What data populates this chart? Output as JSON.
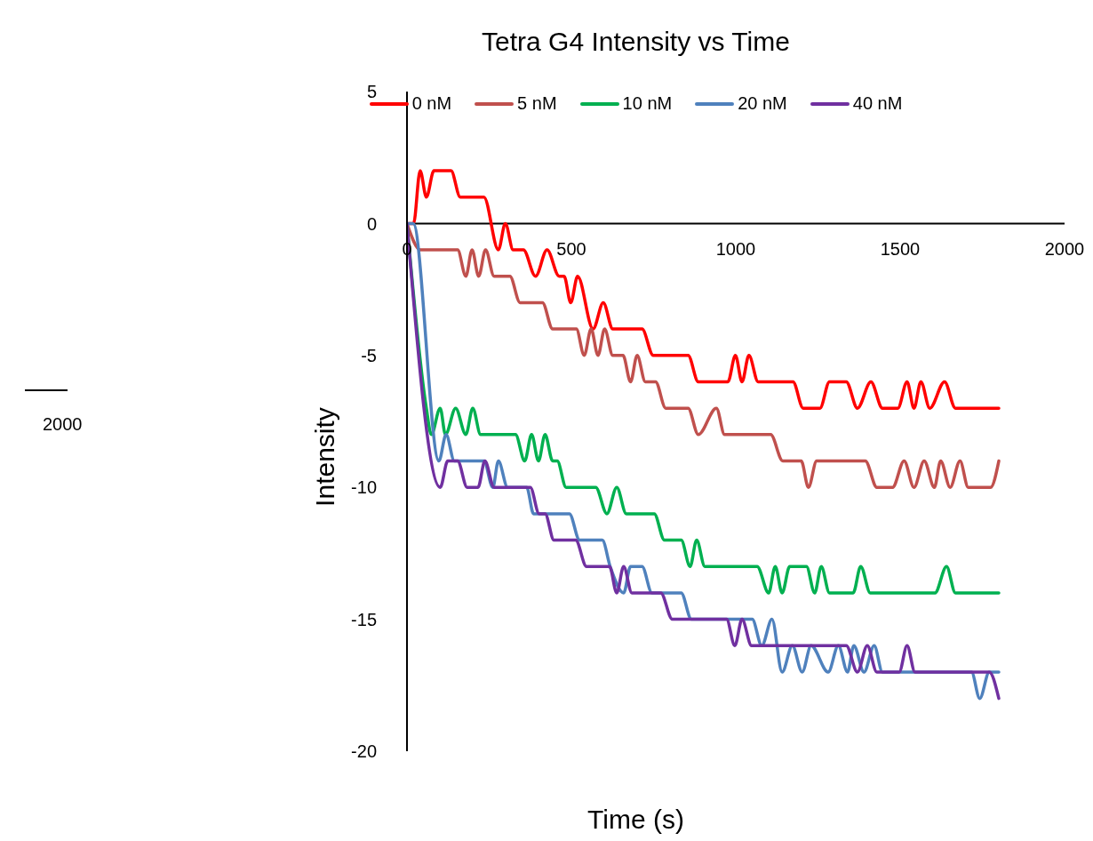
{
  "chart_data": {
    "type": "line",
    "title": "Tetra G4 Intensity vs Time",
    "xlabel": "Time (s)",
    "ylabel": "Intensity",
    "xlim": [
      0,
      2000
    ],
    "xticks": [
      0,
      500,
      1000,
      1500,
      2000
    ],
    "ylim": [
      -20,
      5
    ],
    "yticks": [
      -20,
      -15,
      -10,
      -5,
      0,
      5
    ],
    "grid": false,
    "legend": "top",
    "marker": "none",
    "line_style": "solid",
    "annotations": [
      "2000"
    ],
    "series": [
      {
        "name": "0 nM",
        "color": "#ff0000",
        "x": [
          0,
          20,
          40,
          59,
          82,
          134,
          162,
          234,
          278,
          299,
          323,
          354,
          391,
          426,
          463,
          478,
          498,
          519,
          566,
          597,
          626,
          715,
          749,
          855,
          886,
          976,
          999,
          1019,
          1040,
          1068,
          1174,
          1205,
          1256,
          1285,
          1336,
          1370,
          1411,
          1446,
          1493,
          1521,
          1542,
          1563,
          1590,
          1635,
          1668,
          1800
        ],
        "values": [
          0,
          0,
          2,
          1,
          2,
          2,
          1,
          1,
          -1,
          0,
          -1,
          -1,
          -2,
          -1,
          -2,
          -2,
          -3,
          -2,
          -4,
          -3,
          -4,
          -4,
          -5,
          -5,
          -6,
          -6,
          -5,
          -6,
          -5,
          -6,
          -6,
          -7,
          -7,
          -6,
          -6,
          -7,
          -6,
          -7,
          -7,
          -6,
          -7,
          -6,
          -7,
          -6,
          -7,
          -7
        ]
      },
      {
        "name": "5 nM",
        "color": "#c0504d",
        "x": [
          0,
          41,
          154,
          179,
          198,
          218,
          239,
          265,
          313,
          344,
          412,
          443,
          515,
          539,
          560,
          581,
          601,
          626,
          657,
          680,
          700,
          725,
          756,
          787,
          855,
          886,
          941,
          966,
          1106,
          1143,
          1199,
          1221,
          1246,
          1394,
          1429,
          1477,
          1512,
          1542,
          1573,
          1604,
          1623,
          1652,
          1682,
          1707,
          1775,
          1800
        ],
        "values": [
          0,
          -1,
          -1,
          -2,
          -1,
          -2,
          -1,
          -2,
          -2,
          -3,
          -3,
          -4,
          -4,
          -5,
          -4,
          -5,
          -4,
          -5,
          -5,
          -6,
          -5,
          -6,
          -6,
          -7,
          -7,
          -8,
          -7,
          -8,
          -8,
          -9,
          -9,
          -10,
          -9,
          -9,
          -10,
          -10,
          -9,
          -10,
          -9,
          -10,
          -9,
          -10,
          -9,
          -10,
          -10,
          -9
        ]
      },
      {
        "name": "10 nM",
        "color": "#00b050",
        "x": [
          0,
          59,
          74,
          101,
          117,
          148,
          179,
          200,
          224,
          330,
          358,
          379,
          400,
          420,
          443,
          457,
          484,
          574,
          608,
          638,
          667,
          752,
          783,
          834,
          861,
          881,
          906,
          1065,
          1100,
          1120,
          1141,
          1164,
          1215,
          1240,
          1260,
          1285,
          1357,
          1380,
          1409,
          1606,
          1641,
          1668,
          1800
        ],
        "values": [
          0,
          -7,
          -8,
          -7,
          -8,
          -7,
          -8,
          -7,
          -8,
          -8,
          -9,
          -8,
          -9,
          -8,
          -9,
          -9,
          -10,
          -10,
          -11,
          -10,
          -11,
          -11,
          -12,
          -12,
          -13,
          -12,
          -13,
          -13,
          -14,
          -13,
          -14,
          -13,
          -13,
          -14,
          -13,
          -14,
          -14,
          -13,
          -14,
          -14,
          -13,
          -14,
          -14
        ]
      },
      {
        "name": "20 nM",
        "color": "#4f81bd",
        "x": [
          0,
          19,
          97,
          119,
          144,
          234,
          261,
          278,
          306,
          364,
          385,
          494,
          525,
          594,
          618,
          659,
          680,
          715,
          745,
          834,
          865,
          1050,
          1079,
          1110,
          1141,
          1172,
          1202,
          1229,
          1281,
          1312,
          1340,
          1359,
          1390,
          1421,
          1446,
          1717,
          1742,
          1771,
          1800
        ],
        "values": [
          0,
          0,
          -9,
          -8,
          -9,
          -9,
          -10,
          -9,
          -10,
          -10,
          -11,
          -11,
          -12,
          -12,
          -13,
          -14,
          -13,
          -13,
          -14,
          -14,
          -15,
          -15,
          -16,
          -15,
          -17,
          -16,
          -17,
          -16,
          -17,
          -16,
          -17,
          -16,
          -17,
          -16,
          -17,
          -17,
          -18,
          -17,
          -17
        ]
      },
      {
        "name": "40 nM",
        "color": "#7030a0",
        "x": [
          0,
          101,
          124,
          154,
          183,
          216,
          237,
          265,
          375,
          402,
          420,
          447,
          513,
          546,
          616,
          638,
          659,
          684,
          772,
          807,
          972,
          997,
          1019,
          1048,
          1336,
          1370,
          1400,
          1429,
          1497,
          1521,
          1545,
          1771,
          1800
        ],
        "values": [
          0,
          -10,
          -9,
          -9,
          -10,
          -10,
          -9,
          -10,
          -10,
          -11,
          -11,
          -12,
          -12,
          -13,
          -13,
          -14,
          -13,
          -14,
          -14,
          -15,
          -15,
          -16,
          -15,
          -16,
          -16,
          -17,
          -16,
          -17,
          -17,
          -16,
          -17,
          -17,
          -18
        ]
      }
    ]
  }
}
